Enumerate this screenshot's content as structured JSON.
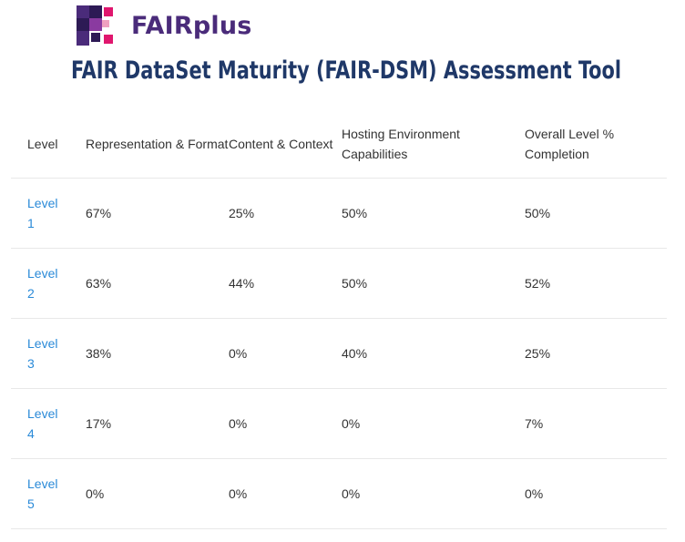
{
  "brand": {
    "name": "FAIRplus",
    "colors": {
      "purple": "#4a2b7a",
      "pink": "#e0166e",
      "dark": "#2d1a55"
    }
  },
  "page_title": "FAIR DataSet Maturity (FAIR-DSM) Assessment Tool",
  "table": {
    "headers": [
      "Level",
      "Representation & Format",
      "Content & Context",
      "Hosting Environment Capabilities",
      "Overall Level % Completion"
    ],
    "rows": [
      {
        "level": "Level 1",
        "representation": "67%",
        "content": "25%",
        "hosting": "50%",
        "overall": "50%"
      },
      {
        "level": "Level 2",
        "representation": "63%",
        "content": "44%",
        "hosting": "50%",
        "overall": "52%"
      },
      {
        "level": "Level 3",
        "representation": "38%",
        "content": "0%",
        "hosting": "40%",
        "overall": "25%"
      },
      {
        "level": "Level 4",
        "representation": "17%",
        "content": "0%",
        "hosting": "0%",
        "overall": "7%"
      },
      {
        "level": "Level 5",
        "representation": "0%",
        "content": "0%",
        "hosting": "0%",
        "overall": "0%"
      }
    ]
  }
}
